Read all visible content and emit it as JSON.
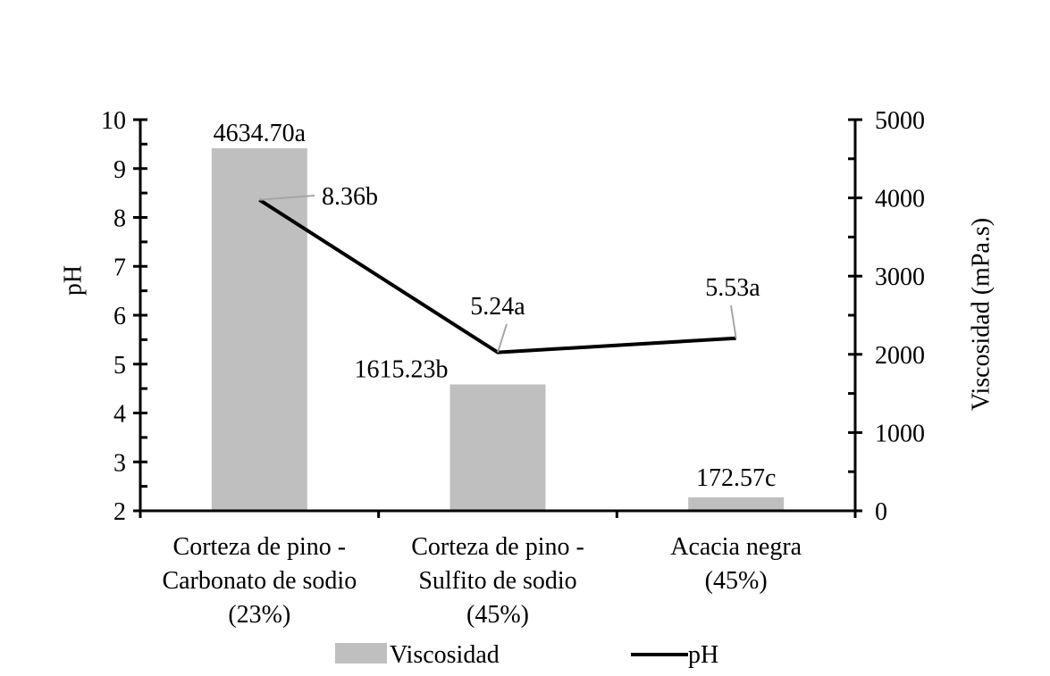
{
  "chart_data": {
    "type": "bar+line",
    "title": "",
    "categories": [
      [
        "Corteza de pino -",
        "Carbonato de sodio",
        "(23%)"
      ],
      [
        "Corteza de pino -",
        "Sulfito de sodio",
        "(45%)"
      ],
      [
        "Acacia negra",
        "(45%)"
      ]
    ],
    "category_names": [
      "Corteza de pino - Carbonato de sodio (23%)",
      "Corteza de pino - Sulfito de sodio (45%)",
      "Acacia negra (45%)"
    ],
    "series": [
      {
        "name": "Viscosidad",
        "type": "bar",
        "axis": "right",
        "color": "#bfbfbf",
        "values": [
          4634.7,
          1615.23,
          172.57
        ],
        "labels": [
          "4634.70a",
          "1615.23b",
          "172.57c"
        ]
      },
      {
        "name": "pH",
        "type": "line",
        "axis": "left",
        "color": "#000000",
        "values": [
          8.36,
          5.24,
          5.53
        ],
        "labels": [
          "8.36b",
          "5.24a",
          "5.53a"
        ]
      }
    ],
    "ylabel_left": "pH",
    "ylabel_right": "Viscosidad (mPa.s)",
    "xlabel": "",
    "ylim_left": [
      2,
      10
    ],
    "ylim_right": [
      0,
      5000
    ],
    "yticks_left": [
      2,
      3,
      4,
      5,
      6,
      7,
      8,
      9,
      10
    ],
    "yticks_right": [
      0,
      1000,
      2000,
      3000,
      4000,
      5000
    ],
    "grid": false,
    "legend_position": "bottom"
  },
  "legend": {
    "items": [
      {
        "label": "Viscosidad",
        "kind": "bar",
        "color": "#bfbfbf"
      },
      {
        "label": "pH",
        "kind": "line",
        "color": "#000000"
      }
    ]
  },
  "axes": {
    "left_title": "pH",
    "right_title": "Viscosidad (mPa.s)"
  }
}
